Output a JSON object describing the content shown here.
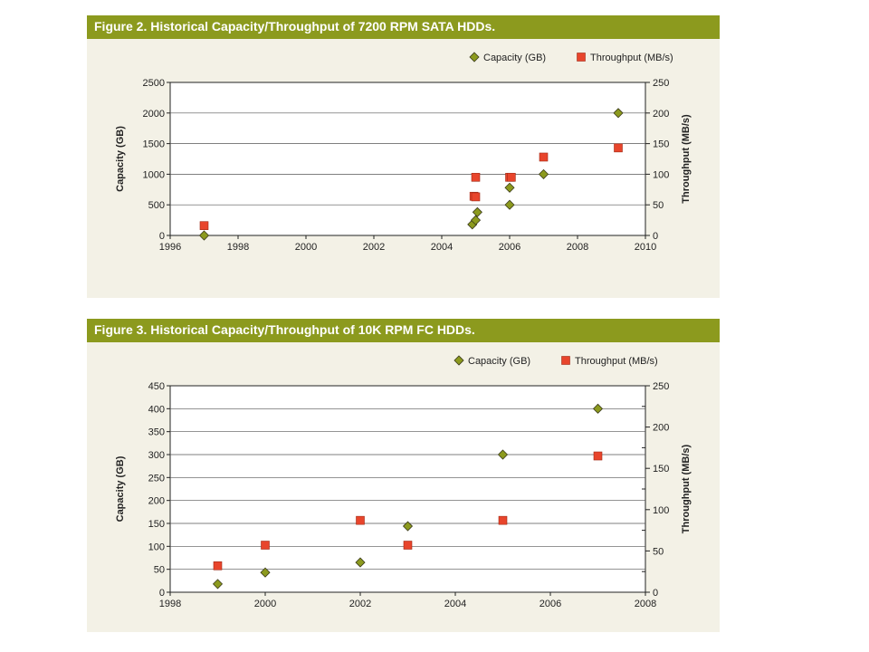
{
  "colors": {
    "title_bar": "#8c9a1e",
    "panel_bg": "#f3f1e6",
    "capacity_marker": "#8c9a1e",
    "throughput_marker": "#e8452c",
    "marker_stroke": "#3a3a1a"
  },
  "chart_data": [
    {
      "type": "scatter",
      "title": "Figure 2. Historical Capacity/Throughput of 7200 RPM SATA HDDs.",
      "xlabel": "",
      "ylabel": "Capacity (GB)",
      "y2label": "Throughput (MB/s)",
      "xlim": [
        1996,
        2010
      ],
      "ylim": [
        0,
        2500
      ],
      "y2lim": [
        0,
        250
      ],
      "x_ticks": [
        "1996",
        "1998",
        "2000",
        "2002",
        "2004",
        "2006",
        "2008",
        "2010"
      ],
      "y_ticks": [
        "0",
        "500",
        "1000",
        "1500",
        "2000",
        "2500"
      ],
      "y2_ticks": [
        "0",
        "50",
        "100",
        "150",
        "200",
        "250"
      ],
      "grid": true,
      "legend_position": "top-right",
      "series": [
        {
          "name": "Capacity (GB)",
          "axis": "left",
          "marker": "diamond",
          "points": [
            [
              1997.0,
              0
            ],
            [
              2004.9,
              180
            ],
            [
              2005.0,
              250
            ],
            [
              2005.05,
              380
            ],
            [
              2006.0,
              500
            ],
            [
              2006.0,
              780
            ],
            [
              2007.0,
              1000
            ],
            [
              2009.2,
              2000
            ]
          ]
        },
        {
          "name": "Throughput (MB/s)",
          "axis": "right",
          "marker": "square",
          "points": [
            [
              1997.0,
              16
            ],
            [
              2004.95,
              64
            ],
            [
              2005.0,
              63
            ],
            [
              2005.0,
              95
            ],
            [
              2006.0,
              95
            ],
            [
              2006.05,
              95
            ],
            [
              2007.0,
              128
            ],
            [
              2009.2,
              143
            ]
          ]
        }
      ]
    },
    {
      "type": "scatter",
      "title": "Figure 3. Historical Capacity/Throughput of 10K RPM FC HDDs.",
      "xlabel": "",
      "ylabel": "Capacity (GB)",
      "y2label": "Throughput (MB/s)",
      "xlim": [
        1998,
        2008
      ],
      "ylim": [
        0,
        450
      ],
      "y2lim": [
        0,
        250
      ],
      "x_ticks": [
        "1998",
        "2000",
        "2002",
        "2004",
        "2006",
        "2008"
      ],
      "y_ticks": [
        "0",
        "50",
        "100",
        "150",
        "200",
        "250",
        "300",
        "350",
        "400",
        "450"
      ],
      "y2_ticks": [
        "0",
        "50",
        "100",
        "150",
        "200",
        "250"
      ],
      "grid": true,
      "legend_position": "top-right",
      "series": [
        {
          "name": "Capacity (GB)",
          "axis": "left",
          "marker": "diamond",
          "points": [
            [
              1999.0,
              18
            ],
            [
              2000.0,
              43
            ],
            [
              2002.0,
              65
            ],
            [
              2003.0,
              144
            ],
            [
              2005.0,
              300
            ],
            [
              2007.0,
              400
            ]
          ]
        },
        {
          "name": "Throughput (MB/s)",
          "axis": "right",
          "marker": "square",
          "points": [
            [
              1999.0,
              32
            ],
            [
              2000.0,
              57
            ],
            [
              2002.0,
              87
            ],
            [
              2003.0,
              57
            ],
            [
              2005.0,
              87
            ],
            [
              2007.0,
              165
            ]
          ]
        }
      ]
    }
  ]
}
